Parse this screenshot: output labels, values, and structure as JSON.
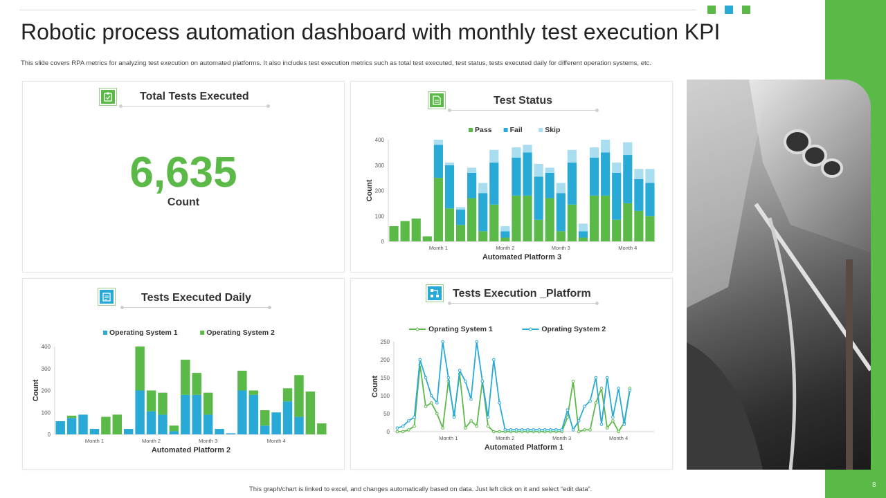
{
  "header": {
    "title": "Robotic process automation dashboard with monthly test execution KPI",
    "subtitle": "This slide covers RPA metrics for analyzing test execution on automated platforms. It also includes test execution metrics such as total test executed, test status, tests executed daily for different operation systems, etc."
  },
  "colors": {
    "green": "#5bb947",
    "blue": "#29a9d6",
    "light_blue": "#a9def0",
    "accent_squares": [
      "#5bb947",
      "#29a9d6",
      "#5bb947"
    ]
  },
  "total_panel": {
    "title": "Total Tests Executed",
    "value": "6,635",
    "caption": "Count",
    "icon": "clipboard-check-icon"
  },
  "status_panel": {
    "title": "Test Status",
    "icon": "document-icon"
  },
  "daily_panel": {
    "title": "Tests Executed Daily",
    "icon": "checklist-icon"
  },
  "platform_panel": {
    "title": "Tests Execution _Platform",
    "icon": "process-flow-icon"
  },
  "photo": {
    "alt": "industrial-robot-photo"
  },
  "footer": {
    "note": "This graph/chart is linked to excel, and changes automatically based on data. Just left click on it and select “edit data”.",
    "page_number": "8"
  },
  "chart_data": [
    {
      "id": "test_status",
      "type": "bar",
      "stacked": true,
      "title": "Test Status",
      "xlabel": "Automated Platform 3",
      "ylabel": "Count",
      "ylim": [
        0,
        400
      ],
      "yticks": [
        0,
        100,
        200,
        300,
        400
      ],
      "month_labels": [
        "Month 1",
        "Month 2",
        "Month 3",
        "Month 4"
      ],
      "month_label_positions": [
        4.5,
        10.5,
        15.5,
        21.5
      ],
      "legend": [
        "Pass",
        "Fail",
        "Skip"
      ],
      "series": [
        {
          "name": "Pass",
          "values": [
            60,
            80,
            90,
            20,
            250,
            130,
            65,
            170,
            40,
            145,
            15,
            180,
            180,
            85,
            170,
            40,
            145,
            15,
            180,
            180,
            85,
            150,
            120,
            100
          ]
        },
        {
          "name": "Fail",
          "values": [
            0,
            0,
            0,
            0,
            130,
            170,
            60,
            100,
            150,
            165,
            25,
            150,
            170,
            170,
            100,
            150,
            165,
            25,
            150,
            170,
            185,
            190,
            125,
            130
          ]
        },
        {
          "name": "Skip",
          "values": [
            0,
            0,
            0,
            0,
            20,
            10,
            10,
            20,
            40,
            50,
            20,
            40,
            30,
            50,
            20,
            40,
            50,
            30,
            40,
            50,
            40,
            50,
            40,
            55
          ]
        }
      ]
    },
    {
      "id": "tests_executed_daily",
      "type": "bar",
      "stacked": true,
      "title": "Tests Executed Daily",
      "xlabel": "Automated Platform 2",
      "ylabel": "Count",
      "ylim": [
        0,
        400
      ],
      "yticks": [
        0,
        100,
        200,
        300,
        400
      ],
      "month_labels": [
        "Month 1",
        "Month 2",
        "Month 3",
        "Month 4"
      ],
      "month_label_positions": [
        3.5,
        8.5,
        13.5,
        19.5
      ],
      "legend": [
        "Operating System 1",
        "Operating System 2"
      ],
      "series": [
        {
          "name": "Operating System 1",
          "values": [
            60,
            75,
            90,
            25,
            0,
            0,
            25,
            200,
            105,
            90,
            15,
            180,
            180,
            90,
            25,
            5,
            200,
            180,
            40,
            100,
            150,
            80,
            0,
            0
          ]
        },
        {
          "name": "Operating System 2",
          "values": [
            0,
            10,
            0,
            0,
            80,
            90,
            0,
            200,
            95,
            100,
            25,
            160,
            100,
            100,
            0,
            0,
            90,
            20,
            70,
            0,
            60,
            190,
            195,
            50
          ]
        }
      ]
    },
    {
      "id": "tests_execution_platform",
      "type": "line",
      "title": "Tests Execution _Platform",
      "xlabel": "Automated Platform 1",
      "ylabel": "Count",
      "ylim": [
        0,
        250
      ],
      "yticks": [
        0,
        50,
        100,
        150,
        200,
        250
      ],
      "month_labels": [
        "Month 1",
        "Month 2",
        "Month 3",
        "Month 4"
      ],
      "month_label_positions": [
        10,
        20,
        30,
        40
      ],
      "legend": [
        "Oprating System 1",
        "Oprating System 2"
      ],
      "series": [
        {
          "name": "Oprating System 1",
          "values": [
            0,
            0,
            5,
            15,
            185,
            70,
            80,
            50,
            10,
            140,
            45,
            160,
            10,
            30,
            15,
            140,
            15,
            0,
            0,
            0,
            0,
            0,
            0,
            0,
            0,
            0,
            0,
            0,
            0,
            0,
            40,
            140,
            0,
            5,
            5,
            80,
            120,
            10,
            30,
            0,
            25,
            120
          ]
        },
        {
          "name": "Oprating System 2",
          "values": [
            10,
            15,
            30,
            40,
            200,
            150,
            100,
            80,
            250,
            150,
            40,
            170,
            140,
            90,
            250,
            140,
            40,
            200,
            80,
            5,
            5,
            5,
            5,
            5,
            5,
            5,
            5,
            5,
            5,
            5,
            60,
            5,
            30,
            70,
            85,
            150,
            20,
            150,
            40,
            120,
            20,
            115
          ]
        }
      ]
    }
  ]
}
